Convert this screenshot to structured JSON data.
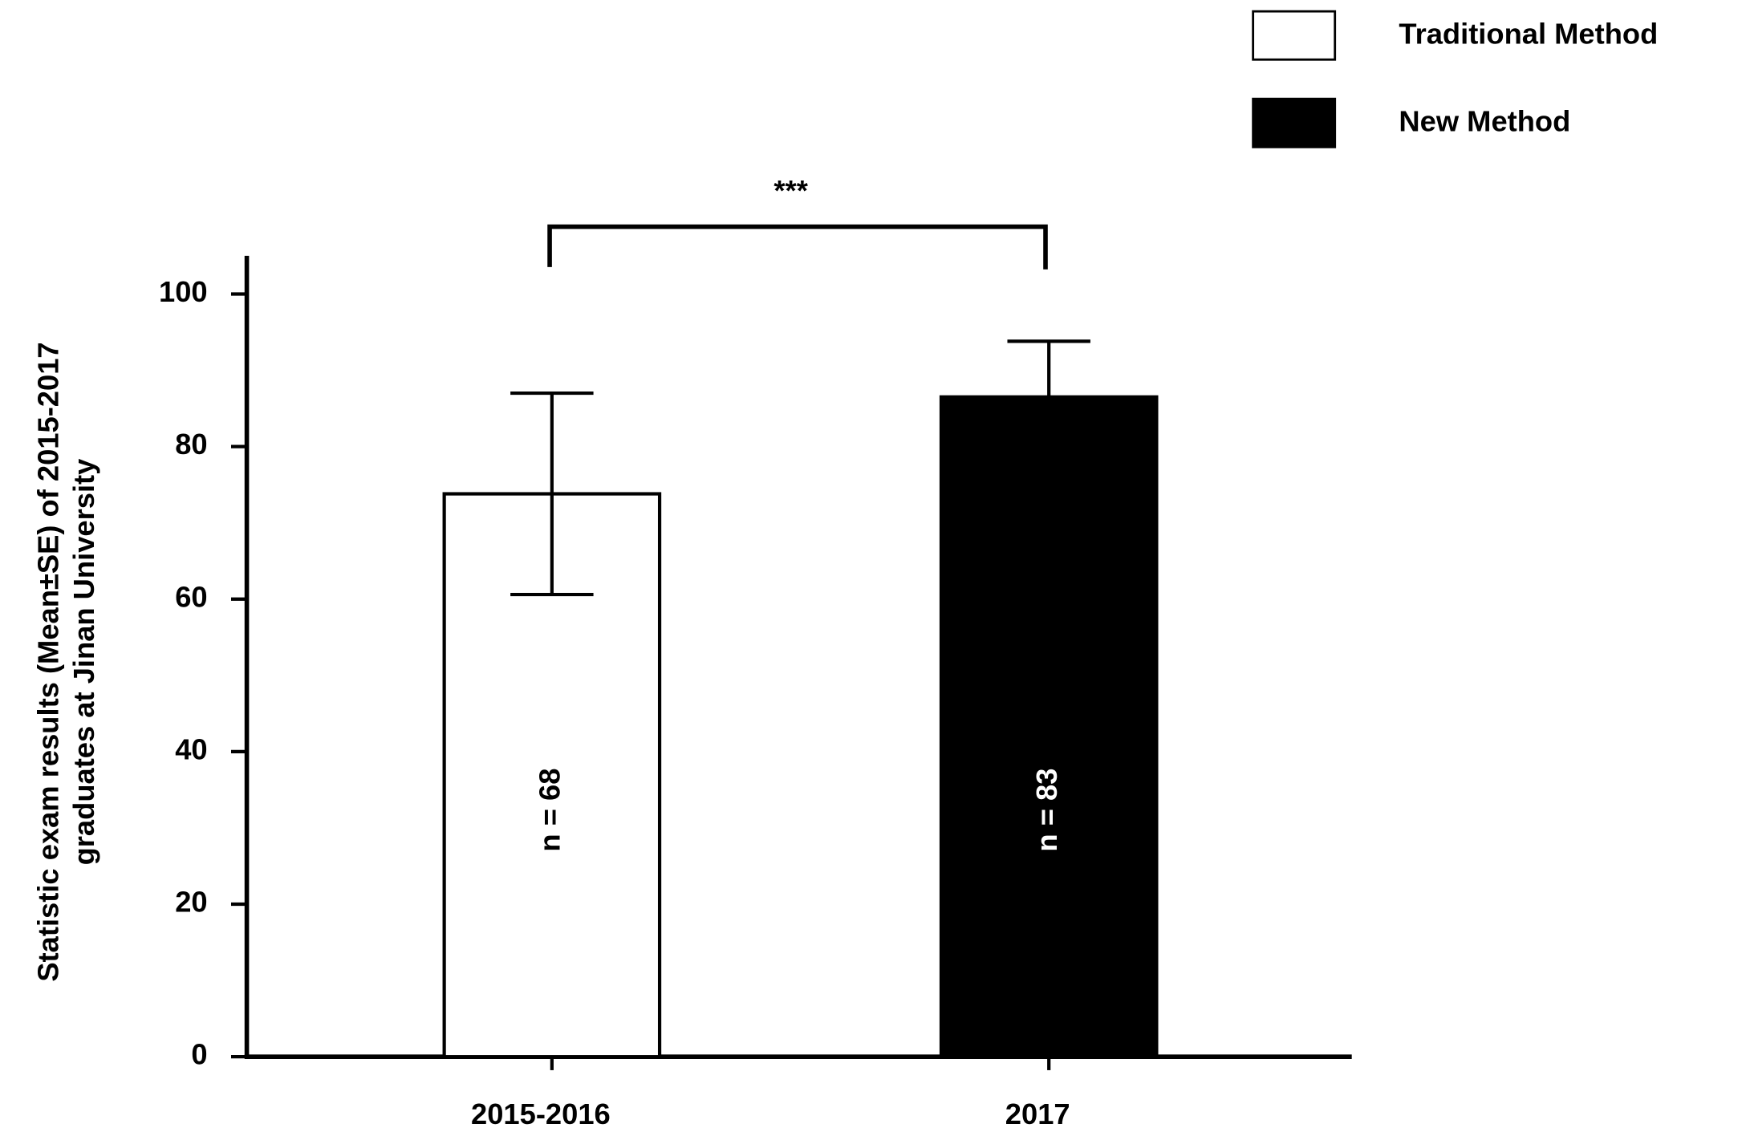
{
  "chart_data": {
    "type": "bar",
    "ylabel": [
      "Statistic exam results (Mean±SE) of  2015-2017",
      "graduates at Jinan University"
    ],
    "categories": [
      "2015-2016",
      "2017"
    ],
    "values": [
      73.8,
      86.5
    ],
    "errors": [
      13.2,
      7.3
    ],
    "colors": [
      "#ffffff",
      "#000000"
    ],
    "legend": [
      "Traditional Method",
      "New Method"
    ],
    "bar_labels": [
      "n = 68",
      "n = 83"
    ],
    "significance": "***",
    "ylim": [
      0,
      105
    ],
    "yticks": [
      0,
      20,
      40,
      60,
      80,
      100
    ]
  }
}
